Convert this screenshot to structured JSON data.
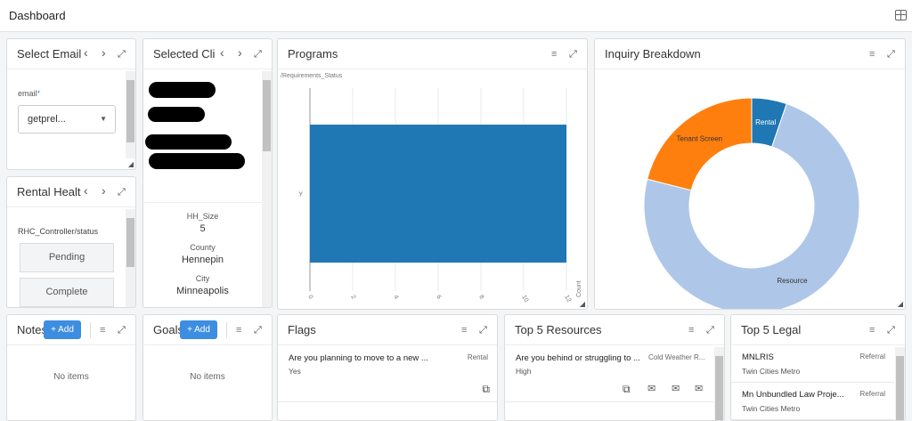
{
  "header": {
    "title": "Dashboard",
    "layout_icon": "grid-layout-icon"
  },
  "select_email": {
    "title": "Select Email",
    "field_label": "email",
    "required_mark": "*",
    "value": "getprel..."
  },
  "rental_health": {
    "title": "Rental Healt",
    "field_label": "RHC_Controller/status",
    "options": [
      "Pending",
      "Complete"
    ]
  },
  "selected_client": {
    "title": "Selected Cli",
    "fields": [
      {
        "label": "HH_Size",
        "value": "5"
      },
      {
        "label": "County",
        "value": "Hennepin"
      },
      {
        "label": "City",
        "value": "Minneapolis"
      }
    ]
  },
  "programs": {
    "title": "Programs"
  },
  "inquiry": {
    "title": "Inquiry Breakdown"
  },
  "notes": {
    "title": "Notes",
    "add_label": "Add",
    "empty": "No items"
  },
  "goals": {
    "title": "Goals",
    "add_label": "Add",
    "empty": "No items"
  },
  "flags": {
    "title": "Flags",
    "items": [
      {
        "question": "Are you planning to move to a new ...",
        "category": "Rental",
        "answer": "Yes"
      }
    ]
  },
  "resources": {
    "title": "Top 5 Resources",
    "items": [
      {
        "question": "Are you behind or struggling to ...",
        "resource": "Cold Weather R...",
        "priority": "High"
      }
    ]
  },
  "legal": {
    "title": "Top 5 Legal",
    "items": [
      {
        "name": "MNLRIS",
        "type": "Referral",
        "region": "Twin Cities Metro"
      },
      {
        "name": "Mn Unbundled Law Proje...",
        "type": "Referral",
        "region": "Twin Cities Metro"
      }
    ]
  },
  "chart_data": [
    {
      "type": "bar",
      "orientation": "horizontal",
      "title": "/Requirements_Status",
      "categories": [
        "Y"
      ],
      "values": [
        12
      ],
      "xlabel": "Count",
      "xlim": [
        0,
        12
      ],
      "xticks": [
        0,
        2,
        4,
        6,
        8,
        10,
        12
      ],
      "color": "#1f77b4",
      "grid": true
    },
    {
      "type": "pie",
      "donut": true,
      "labels": [
        "Rental",
        "Resource",
        "Tenant Screen"
      ],
      "values": [
        1,
        14,
        4
      ],
      "colors": [
        "#1f77b4",
        "#aec7e8",
        "#ff7f0e"
      ]
    }
  ]
}
